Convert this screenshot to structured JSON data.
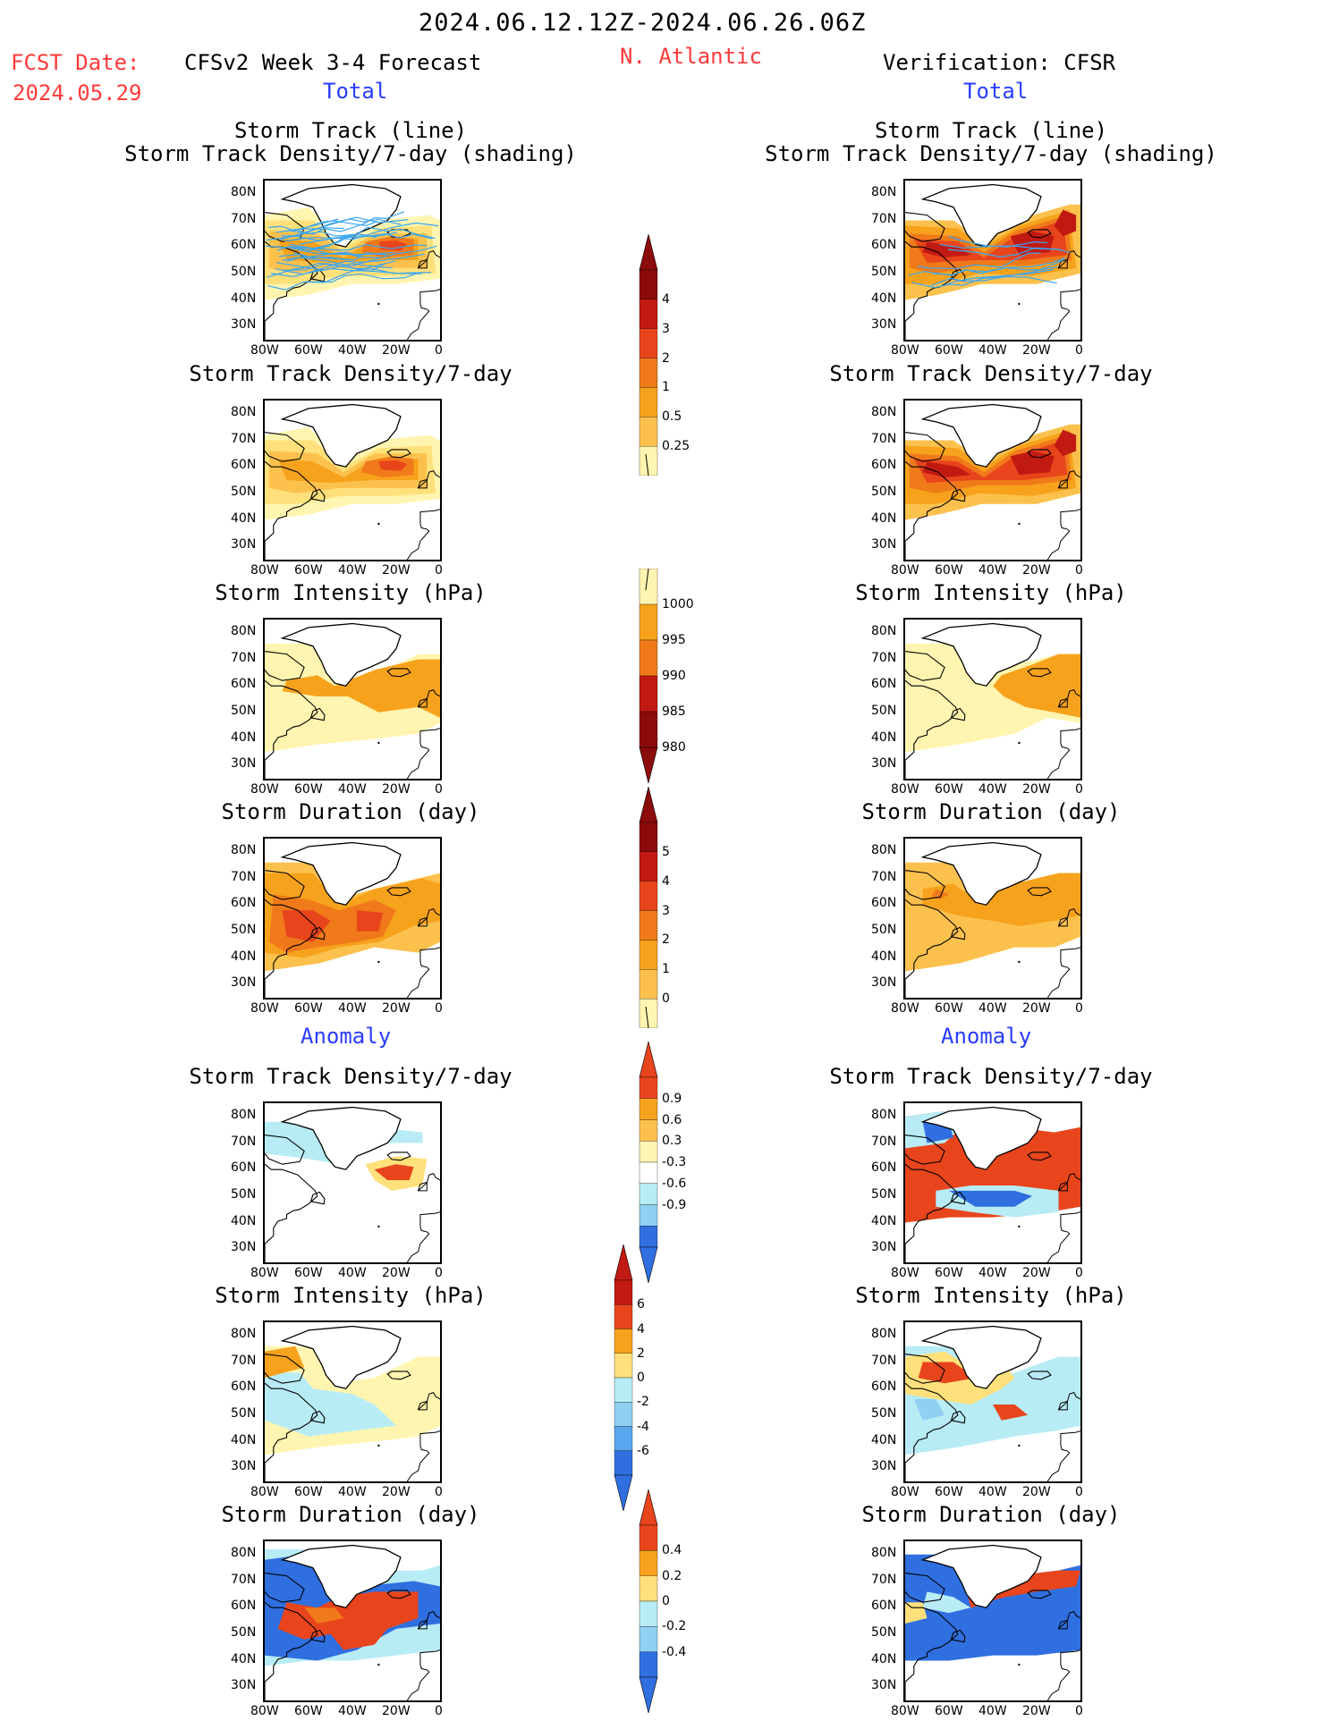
{
  "header": {
    "period": "2024.06.12.12Z-2024.06.26.06Z",
    "fcst_label": "FCST Date:",
    "fcst_date": "2024.05.29",
    "model": "CFSv2 Week 3-4 Forecast",
    "region": "N. Atlantic",
    "verification": "Verification: CFSR",
    "total_left": "Total",
    "total_right": "Total",
    "anomaly_left": "Anomaly",
    "anomaly_right": "Anomaly"
  },
  "titles": {
    "r1a": "Storm Track (line)",
    "r1b": "Storm Track Density/7-day (shading)",
    "r2": "Storm Track Density/7-day",
    "r3": "Storm Intensity (hPa)",
    "r4": "Storm Duration (day)",
    "r5": "Storm Track Density/7-day",
    "r6": "Storm Intensity (hPa)",
    "r7": "Storm Duration (day)"
  },
  "axes": {
    "lat_ticks": [
      "80N",
      "70N",
      "60N",
      "50N",
      "40N",
      "30N"
    ],
    "lon_ticks": [
      "80W",
      "60W",
      "40W",
      "20W",
      "0"
    ]
  },
  "colorbars": {
    "density": [
      "4",
      "3",
      "2",
      "1",
      "0.5",
      "0.25"
    ],
    "intensity": [
      "1000",
      "995",
      "990",
      "985",
      "980"
    ],
    "duration": [
      "5",
      "4",
      "3",
      "2",
      "1",
      "0"
    ],
    "density_anom": [
      "0.9",
      "0.6",
      "0.3",
      "-0.3",
      "-0.6",
      "-0.9"
    ],
    "intensity_anom": [
      "6",
      "4",
      "2",
      "0",
      "-2",
      "-4",
      "-6"
    ],
    "duration_anom": [
      "0.4",
      "0.2",
      "0",
      "-0.2",
      "-0.4"
    ]
  },
  "colors": {
    "title_red": "#ff3a3a",
    "title_blue": "#2a3cff",
    "pale_yellow": "#fff5b0",
    "yellow": "#ffe07a",
    "light_orange": "#fcc14d",
    "orange": "#f7a21c",
    "dark_orange": "#f07a1a",
    "red": "#e8451c",
    "dark_red": "#c11a12",
    "maroon": "#8c0b0b",
    "light_blue": "#b8ecf5",
    "sky_blue": "#8fd0f3",
    "mid_blue": "#5aa6ee",
    "blue": "#2f6fe0",
    "track_line": "#3aa6f0"
  },
  "chart_data": [
    {
      "type": "heatmap",
      "panel": "forecast-track-density-with-tracks",
      "side": "left",
      "lat_range": [
        25,
        85
      ],
      "lon_range": [
        -80,
        0
      ],
      "scale": "density",
      "max_region": "centered near 60N 25W"
    },
    {
      "type": "heatmap",
      "panel": "verification-track-density-with-tracks",
      "side": "right",
      "lat_range": [
        25,
        85
      ],
      "lon_range": [
        -80,
        0
      ],
      "scale": "density",
      "max_region": "band 55-70N, peak near 65N 15W"
    },
    {
      "type": "heatmap",
      "panel": "forecast-track-density",
      "side": "left",
      "lat_range": [
        25,
        85
      ],
      "lon_range": [
        -80,
        0
      ],
      "scale": "density"
    },
    {
      "type": "heatmap",
      "panel": "verification-track-density",
      "side": "right",
      "lat_range": [
        25,
        85
      ],
      "lon_range": [
        -80,
        0
      ],
      "scale": "density"
    },
    {
      "type": "heatmap",
      "panel": "forecast-intensity",
      "side": "left",
      "lat_range": [
        25,
        85
      ],
      "lon_range": [
        -80,
        0
      ],
      "scale": "intensity"
    },
    {
      "type": "heatmap",
      "panel": "verification-intensity",
      "side": "right",
      "lat_range": [
        25,
        85
      ],
      "lon_range": [
        -80,
        0
      ],
      "scale": "intensity"
    },
    {
      "type": "heatmap",
      "panel": "forecast-duration",
      "side": "left",
      "lat_range": [
        25,
        85
      ],
      "lon_range": [
        -80,
        0
      ],
      "scale": "duration"
    },
    {
      "type": "heatmap",
      "panel": "verification-duration",
      "side": "right",
      "lat_range": [
        25,
        85
      ],
      "lon_range": [
        -80,
        0
      ],
      "scale": "duration"
    },
    {
      "type": "heatmap",
      "panel": "forecast-density-anomaly",
      "side": "left",
      "lat_range": [
        25,
        85
      ],
      "lon_range": [
        -80,
        0
      ],
      "scale": "density_anom"
    },
    {
      "type": "heatmap",
      "panel": "verification-density-anomaly",
      "side": "right",
      "lat_range": [
        25,
        85
      ],
      "lon_range": [
        -80,
        0
      ],
      "scale": "density_anom"
    },
    {
      "type": "heatmap",
      "panel": "forecast-intensity-anomaly",
      "side": "left",
      "lat_range": [
        25,
        85
      ],
      "lon_range": [
        -80,
        0
      ],
      "scale": "intensity_anom"
    },
    {
      "type": "heatmap",
      "panel": "verification-intensity-anomaly",
      "side": "right",
      "lat_range": [
        25,
        85
      ],
      "lon_range": [
        -80,
        0
      ],
      "scale": "intensity_anom"
    },
    {
      "type": "heatmap",
      "panel": "forecast-duration-anomaly",
      "side": "left",
      "lat_range": [
        25,
        85
      ],
      "lon_range": [
        -80,
        0
      ],
      "scale": "duration_anom"
    },
    {
      "type": "heatmap",
      "panel": "verification-duration-anomaly",
      "side": "right",
      "lat_range": [
        25,
        85
      ],
      "lon_range": [
        -80,
        0
      ],
      "scale": "duration_anom"
    }
  ]
}
